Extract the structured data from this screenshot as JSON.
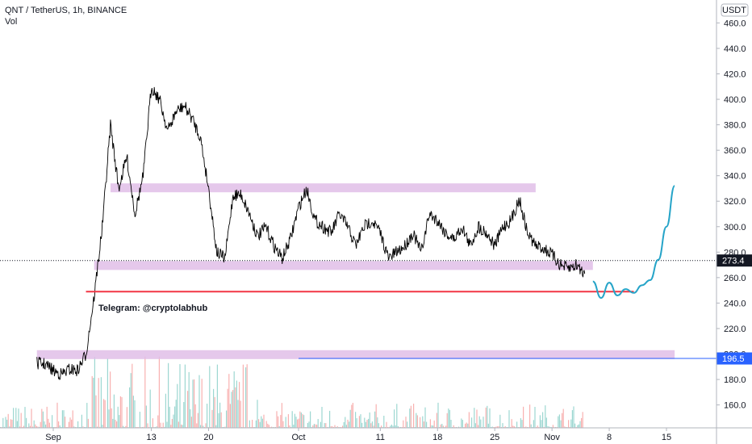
{
  "header": {
    "symbol_line": "QNT / TetherUS, 1h, BINANCE",
    "volume_label": "Vol"
  },
  "currency_badge": "USDT",
  "annotation_text": "Telegram: @cryptolabhub",
  "chart_data": {
    "type": "line",
    "title": "QNT / TetherUS, 1h, BINANCE",
    "y_axis": {
      "ticks": [
        160,
        180,
        200,
        220,
        240,
        260,
        280,
        300,
        320,
        340,
        360,
        380,
        400,
        420,
        440,
        460
      ],
      "labels": [
        "160.0",
        "180.0",
        "200.0",
        "220.0",
        "240.0",
        "260.0",
        "280.0",
        "300.0",
        "320.0",
        "340.0",
        "360.0",
        "380.0",
        "400.0",
        "420.0",
        "440.0",
        "460.0"
      ],
      "ylim": [
        142,
        478
      ]
    },
    "x_axis": {
      "ticks": [
        "Sep",
        "13",
        "20",
        "Oct",
        "11",
        "18",
        "25",
        "Nov",
        "8",
        "15"
      ]
    },
    "price_series": {
      "name": "QNT/USDT 1h",
      "color": "#000000",
      "points": [
        [
          "Aug 30",
          193
        ],
        [
          "Aug 31",
          192
        ],
        [
          "Sep 1",
          187
        ],
        [
          "Sep 2",
          184
        ],
        [
          "Sep 3",
          188
        ],
        [
          "Sep 4",
          187
        ],
        [
          "Sep 5",
          200
        ],
        [
          "Sep 6",
          245
        ],
        [
          "Sep 7",
          300
        ],
        [
          "Sep 8",
          380
        ],
        [
          "Sep 9",
          330
        ],
        [
          "Sep 10",
          355
        ],
        [
          "Sep 11",
          310
        ],
        [
          "Sep 12",
          340
        ],
        [
          "Sep 13",
          410
        ],
        [
          "Sep 14",
          400
        ],
        [
          "Sep 15",
          375
        ],
        [
          "Sep 16",
          390
        ],
        [
          "Sep 17",
          395
        ],
        [
          "Sep 18",
          385
        ],
        [
          "Sep 19",
          370
        ],
        [
          "Sep 20",
          330
        ],
        [
          "Sep 21",
          280
        ],
        [
          "Sep 22",
          275
        ],
        [
          "Sep 23",
          325
        ],
        [
          "Sep 24",
          325
        ],
        [
          "Sep 25",
          310
        ],
        [
          "Sep 26",
          292
        ],
        [
          "Sep 27",
          300
        ],
        [
          "Sep 28",
          285
        ],
        [
          "Sep 29",
          275
        ],
        [
          "Sep 30",
          290
        ],
        [
          "Oct 1",
          315
        ],
        [
          "Oct 2",
          330
        ],
        [
          "Oct 3",
          305
        ],
        [
          "Oct 4",
          300
        ],
        [
          "Oct 5",
          295
        ],
        [
          "Oct 6",
          310
        ],
        [
          "Oct 7",
          300
        ],
        [
          "Oct 8",
          285
        ],
        [
          "Oct 9",
          300
        ],
        [
          "Oct 10",
          305
        ],
        [
          "Oct 11",
          295
        ],
        [
          "Oct 12",
          275
        ],
        [
          "Oct 13",
          280
        ],
        [
          "Oct 14",
          285
        ],
        [
          "Oct 15",
          295
        ],
        [
          "Oct 16",
          280
        ],
        [
          "Oct 17",
          310
        ],
        [
          "Oct 18",
          305
        ],
        [
          "Oct 19",
          295
        ],
        [
          "Oct 20",
          290
        ],
        [
          "Oct 21",
          300
        ],
        [
          "Oct 22",
          285
        ],
        [
          "Oct 23",
          300
        ],
        [
          "Oct 24",
          295
        ],
        [
          "Oct 25",
          285
        ],
        [
          "Oct 26",
          300
        ],
        [
          "Oct 27",
          305
        ],
        [
          "Oct 28",
          322
        ],
        [
          "Oct 29",
          295
        ],
        [
          "Oct 30",
          285
        ],
        [
          "Oct 31",
          283
        ],
        [
          "Nov 1",
          278
        ],
        [
          "Nov 2",
          270
        ],
        [
          "Nov 3",
          267
        ],
        [
          "Nov 4",
          270
        ],
        [
          "Nov 5",
          263
        ]
      ]
    },
    "projection_series": {
      "color": "#26a4c8",
      "points": [
        [
          "Nov 6",
          257
        ],
        [
          "Nov 7",
          244
        ],
        [
          "Nov 8",
          256
        ],
        [
          "Nov 9",
          246
        ],
        [
          "Nov 10",
          251
        ],
        [
          "Nov 11",
          248
        ],
        [
          "Nov 12",
          254
        ],
        [
          "Nov 13",
          258
        ],
        [
          "Nov 14",
          274
        ],
        [
          "Nov 15",
          300
        ],
        [
          "Nov 16",
          332
        ]
      ]
    },
    "zones": [
      {
        "from": "Sep 8",
        "to": "Oct 30",
        "low": 327,
        "high": 334,
        "color": "#e1bee7"
      },
      {
        "from": "Sep 6",
        "to": "Nov 6",
        "low": 266,
        "high": 273,
        "color": "#e1bee7"
      },
      {
        "from": "Aug 30",
        "to": "Nov 16",
        "low": 196,
        "high": 203,
        "color": "#e1bee7"
      }
    ],
    "support_line": {
      "from": "Sep 5",
      "to": "Nov 11",
      "value": 249,
      "color": "#f23645"
    },
    "horizontal_ray": {
      "from": "Oct 1",
      "value": 196.5,
      "color": "#2962ff"
    },
    "last_price": {
      "value": 273.4,
      "label": "273.4"
    },
    "ray_price": {
      "value": 196.5,
      "label": "196.5"
    }
  }
}
